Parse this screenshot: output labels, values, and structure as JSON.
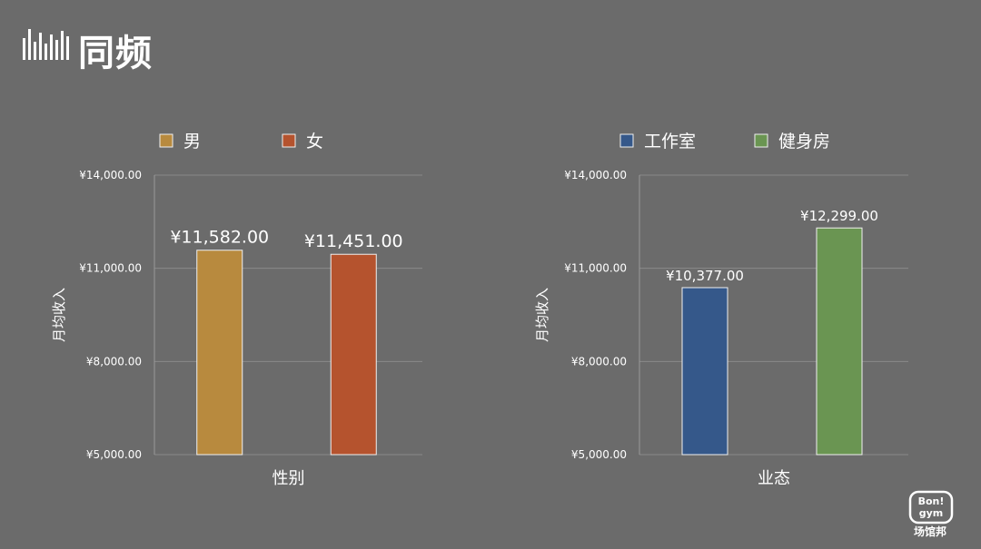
{
  "brand": {
    "name": "同频",
    "badge_text": "Bon! gym",
    "badge_label": "场馆邦"
  },
  "colors": {
    "background": "#6b6b6b",
    "grid": "#8a8a8a",
    "axis": "#9a9a9a",
    "male": "#b88a3e",
    "female": "#b5532e",
    "studio": "#35588a",
    "gym": "#6a9552"
  },
  "chart_data": [
    {
      "type": "bar",
      "categories": [
        "男",
        "女"
      ],
      "values": [
        11582,
        11451
      ],
      "value_labels": [
        "¥11,582.00",
        "¥11,451.00"
      ],
      "xlabel": "性别",
      "ylabel": "月均收入",
      "ylim": [
        5000,
        14000
      ],
      "yticks": [
        5000,
        8000,
        11000,
        14000
      ],
      "ytick_labels": [
        "¥5,000.00",
        "¥8,000.00",
        "¥11,000.00",
        "¥14,000.00"
      ],
      "legend": [
        {
          "name": "男",
          "color": "#b88a3e"
        },
        {
          "name": "女",
          "color": "#b5532e"
        }
      ],
      "legend_position": "top-left",
      "grid": true
    },
    {
      "type": "bar",
      "categories": [
        "工作室",
        "健身房"
      ],
      "values": [
        10377,
        12299
      ],
      "value_labels": [
        "¥10,377.00",
        "¥12,299.00"
      ],
      "xlabel": "业态",
      "ylabel": "月均收入",
      "ylim": [
        5000,
        14000
      ],
      "yticks": [
        5000,
        8000,
        11000,
        14000
      ],
      "ytick_labels": [
        "¥5,000.00",
        "¥8,000.00",
        "¥11,000.00",
        "¥14,000.00"
      ],
      "legend": [
        {
          "name": "工作室",
          "color": "#35588a"
        },
        {
          "name": "健身房",
          "color": "#6a9552"
        }
      ],
      "legend_position": "top-left",
      "grid": true
    }
  ]
}
